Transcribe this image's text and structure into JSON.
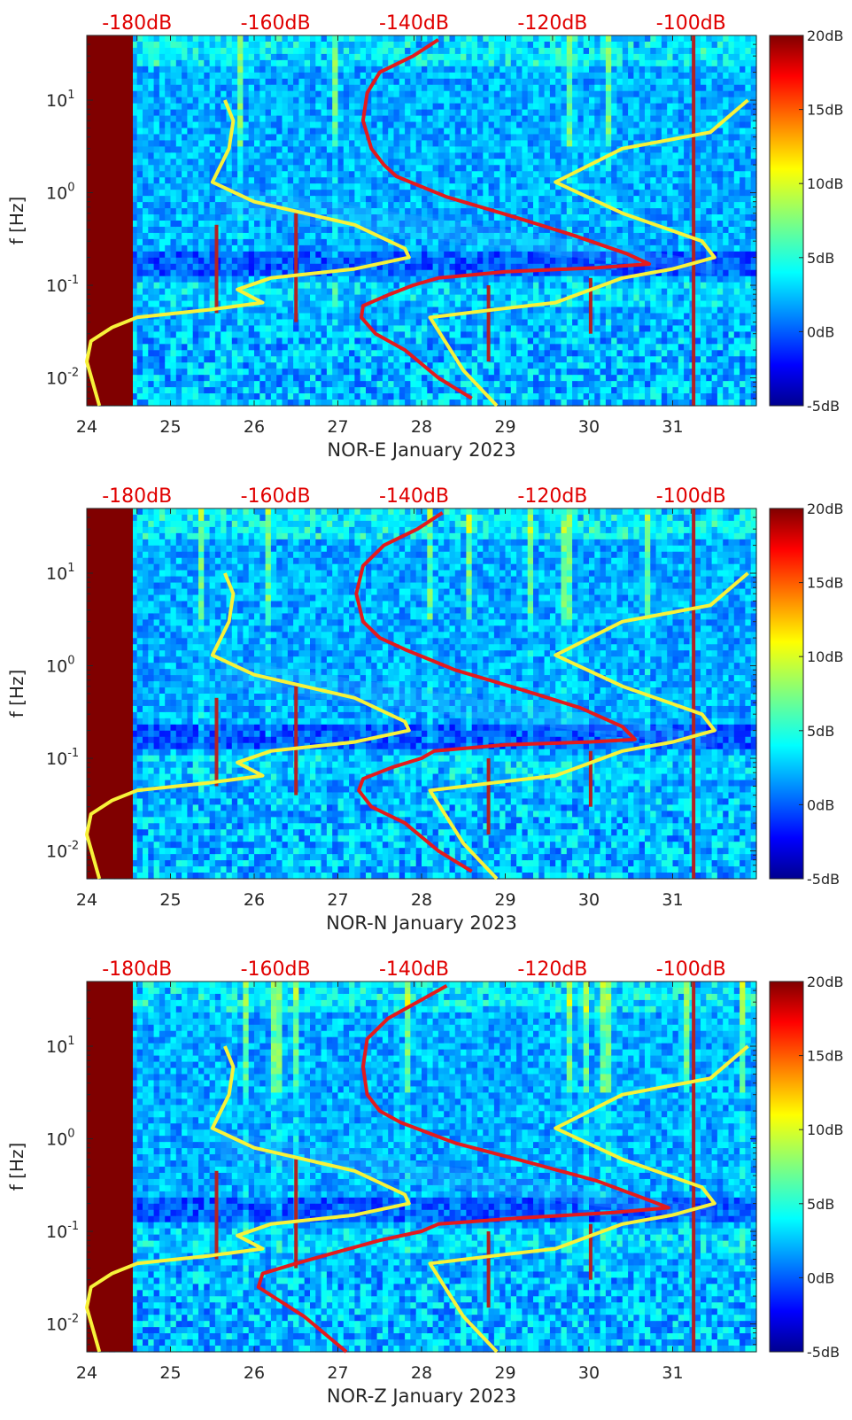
{
  "chart_data": [
    {
      "type": "heatmap",
      "title": "",
      "xlabel": "NOR-E January 2023",
      "ylabel": "f [Hz]",
      "xlim": [
        24,
        32
      ],
      "ylim": [
        0.005,
        50
      ],
      "yscale": "log",
      "x_ticks": [
        "24",
        "25",
        "26",
        "27",
        "28",
        "29",
        "30",
        "31"
      ],
      "y_ticks": [
        "10^-2",
        "10^-1",
        "10^0",
        "10^1"
      ],
      "top_ticks": [
        "-180dB",
        "-160dB",
        "-140dB",
        "-120dB",
        "-100dB"
      ],
      "colorbar": {
        "min": -5,
        "max": 20,
        "ticks": [
          "-5dB",
          "0dB",
          "5dB",
          "10dB",
          "15dB",
          "20dB"
        ]
      },
      "series": [
        {
          "name": "PSD profile (red)",
          "color": "#e41a1c",
          "x": [
            28.2,
            27.9,
            27.5,
            27.35,
            27.3,
            27.4,
            27.55,
            27.7,
            28.3,
            29.1,
            29.8,
            30.45,
            30.72,
            30.1,
            29.0,
            28.2,
            27.9,
            27.62,
            27.3,
            27.28,
            27.45,
            27.8,
            28.2,
            28.6
          ],
          "y": [
            45,
            30,
            20,
            12,
            6,
            3,
            2,
            1.5,
            0.9,
            0.55,
            0.35,
            0.22,
            0.17,
            0.155,
            0.14,
            0.12,
            0.1,
            0.08,
            0.06,
            0.045,
            0.03,
            0.02,
            0.01,
            0.006
          ]
        },
        {
          "name": "Model low (yellow)",
          "color": "#f7f23a",
          "x": [
            25.65,
            25.75,
            25.7,
            25.5,
            26.0,
            27.2,
            27.8,
            27.85,
            27.2,
            26.2,
            25.8,
            26.1,
            25.5,
            24.6,
            24.3,
            24.05,
            24.0,
            24.15
          ],
          "y": [
            10,
            6,
            3,
            1.3,
            0.8,
            0.45,
            0.25,
            0.2,
            0.15,
            0.12,
            0.09,
            0.065,
            0.055,
            0.045,
            0.035,
            0.025,
            0.015,
            0.005
          ]
        },
        {
          "name": "Model high (yellow)",
          "color": "#f7f23a",
          "x": [
            31.9,
            31.45,
            30.4,
            29.6,
            30.4,
            31.35,
            31.5,
            31.0,
            30.4,
            29.6,
            28.9,
            28.1,
            28.5,
            28.9
          ],
          "y": [
            10,
            4.5,
            3,
            1.3,
            0.6,
            0.3,
            0.2,
            0.15,
            0.12,
            0.065,
            0.055,
            0.045,
            0.012,
            0.005
          ]
        }
      ]
    },
    {
      "type": "heatmap",
      "title": "",
      "xlabel": "NOR-N January 2023",
      "ylabel": "f [Hz]",
      "xlim": [
        24,
        32
      ],
      "ylim": [
        0.005,
        50
      ],
      "yscale": "log",
      "x_ticks": [
        "24",
        "25",
        "26",
        "27",
        "28",
        "29",
        "30",
        "31"
      ],
      "y_ticks": [
        "10^-2",
        "10^-1",
        "10^0",
        "10^1"
      ],
      "top_ticks": [
        "-180dB",
        "-160dB",
        "-140dB",
        "-120dB",
        "-100dB"
      ],
      "colorbar": {
        "min": -5,
        "max": 20,
        "ticks": [
          "-5dB",
          "0dB",
          "5dB",
          "10dB",
          "15dB",
          "20dB"
        ]
      },
      "series": [
        {
          "name": "PSD profile (red)",
          "color": "#e41a1c",
          "x": [
            28.25,
            27.95,
            27.55,
            27.3,
            27.22,
            27.3,
            27.5,
            27.8,
            28.4,
            29.2,
            29.9,
            30.4,
            30.55,
            30.0,
            29.0,
            28.15,
            28.0,
            27.65,
            27.3,
            27.25,
            27.4,
            27.8,
            28.2,
            28.6
          ],
          "y": [
            45,
            30,
            20,
            12,
            6,
            3,
            2,
            1.5,
            0.9,
            0.55,
            0.35,
            0.22,
            0.16,
            0.15,
            0.14,
            0.12,
            0.1,
            0.08,
            0.06,
            0.045,
            0.03,
            0.02,
            0.01,
            0.006
          ]
        },
        {
          "name": "Model low (yellow)",
          "color": "#f7f23a",
          "x": [
            25.65,
            25.75,
            25.7,
            25.5,
            26.0,
            27.2,
            27.8,
            27.85,
            27.2,
            26.2,
            25.8,
            26.1,
            25.5,
            24.6,
            24.3,
            24.05,
            24.0,
            24.15
          ],
          "y": [
            10,
            6,
            3,
            1.3,
            0.8,
            0.45,
            0.25,
            0.2,
            0.15,
            0.12,
            0.09,
            0.065,
            0.055,
            0.045,
            0.035,
            0.025,
            0.015,
            0.005
          ]
        },
        {
          "name": "Model high (yellow)",
          "color": "#f7f23a",
          "x": [
            31.9,
            31.45,
            30.4,
            29.6,
            30.4,
            31.35,
            31.5,
            31.0,
            30.4,
            29.6,
            28.9,
            28.1,
            28.5,
            28.9
          ],
          "y": [
            10,
            4.5,
            3,
            1.3,
            0.6,
            0.3,
            0.2,
            0.15,
            0.12,
            0.065,
            0.055,
            0.045,
            0.012,
            0.005
          ]
        }
      ]
    },
    {
      "type": "heatmap",
      "title": "",
      "xlabel": "NOR-Z January 2023",
      "ylabel": "f [Hz]",
      "xlim": [
        24,
        32
      ],
      "ylim": [
        0.005,
        50
      ],
      "yscale": "log",
      "x_ticks": [
        "24",
        "25",
        "26",
        "27",
        "28",
        "29",
        "30",
        "31"
      ],
      "y_ticks": [
        "10^-2",
        "10^-1",
        "10^0",
        "10^1"
      ],
      "top_ticks": [
        "-180dB",
        "-160dB",
        "-140dB",
        "-120dB",
        "-100dB"
      ],
      "colorbar": {
        "min": -5,
        "max": 20,
        "ticks": [
          "-5dB",
          "0dB",
          "5dB",
          "10dB",
          "15dB",
          "20dB"
        ]
      },
      "series": [
        {
          "name": "PSD profile (red)",
          "color": "#e41a1c",
          "x": [
            28.3,
            27.95,
            27.6,
            27.35,
            27.3,
            27.35,
            27.5,
            27.75,
            28.4,
            29.3,
            30.1,
            30.7,
            30.95,
            30.3,
            29.2,
            28.2,
            28.0,
            27.5,
            27.0,
            26.5,
            26.1,
            26.05,
            26.6,
            27.1
          ],
          "y": [
            45,
            30,
            20,
            12,
            6,
            3,
            2,
            1.5,
            0.9,
            0.55,
            0.35,
            0.22,
            0.18,
            0.16,
            0.14,
            0.12,
            0.1,
            0.08,
            0.06,
            0.045,
            0.035,
            0.025,
            0.012,
            0.005
          ]
        },
        {
          "name": "Model low (yellow)",
          "color": "#f7f23a",
          "x": [
            25.65,
            25.75,
            25.7,
            25.5,
            26.0,
            27.2,
            27.8,
            27.85,
            27.2,
            26.2,
            25.8,
            26.1,
            25.5,
            24.6,
            24.3,
            24.05,
            24.0,
            24.15
          ],
          "y": [
            10,
            6,
            3,
            1.3,
            0.8,
            0.45,
            0.25,
            0.2,
            0.15,
            0.12,
            0.09,
            0.065,
            0.055,
            0.045,
            0.035,
            0.025,
            0.015,
            0.005
          ]
        },
        {
          "name": "Model high (yellow)",
          "color": "#f7f23a",
          "x": [
            31.9,
            31.45,
            30.4,
            29.6,
            30.4,
            31.35,
            31.5,
            31.0,
            30.4,
            29.6,
            28.9,
            28.1,
            28.5,
            28.9
          ],
          "y": [
            10,
            4.5,
            3,
            1.3,
            0.6,
            0.3,
            0.2,
            0.15,
            0.12,
            0.065,
            0.055,
            0.045,
            0.012,
            0.005
          ]
        }
      ]
    }
  ]
}
